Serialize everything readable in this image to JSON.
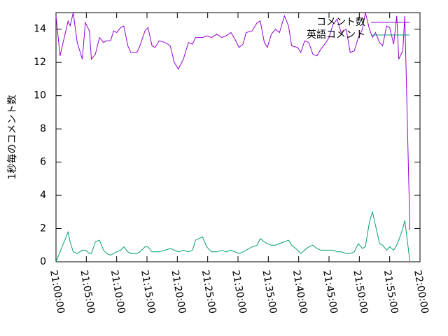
{
  "chart_data": {
    "type": "line",
    "ylabel": "1秒毎のコメント数",
    "legend": "top right",
    "x": [
      "21:00:00",
      "21:00:40",
      "21:02:00",
      "21:02:20",
      "21:02:50",
      "21:03:30",
      "21:04:20",
      "21:04:50",
      "21:05:30",
      "21:05:50",
      "21:06:30",
      "21:07:10",
      "21:07:50",
      "21:08:20",
      "21:09:00",
      "21:09:30",
      "21:10:00",
      "21:10:40",
      "21:11:10",
      "21:11:50",
      "21:12:20",
      "21:13:20",
      "21:13:50",
      "21:14:40",
      "21:15:10",
      "21:15:50",
      "21:16:20",
      "21:17:00",
      "21:18:00",
      "21:18:50",
      "21:19:30",
      "21:20:10",
      "21:21:00",
      "21:21:50",
      "21:22:30",
      "21:23:00",
      "21:24:10",
      "21:24:50",
      "21:25:40",
      "21:26:30",
      "21:27:20",
      "21:28:00",
      "21:28:50",
      "21:29:30",
      "21:30:10",
      "21:30:50",
      "21:31:20",
      "21:32:20",
      "21:33:10",
      "21:33:40",
      "21:34:20",
      "21:34:50",
      "21:35:30",
      "21:36:10",
      "21:36:50",
      "21:37:40",
      "21:38:20",
      "21:38:50",
      "21:39:50",
      "21:40:20",
      "21:41:00",
      "21:41:40",
      "21:42:20",
      "21:43:00",
      "21:43:40",
      "21:44:30",
      "21:45:00",
      "21:45:40",
      "21:46:20",
      "21:47:00",
      "21:47:50",
      "21:48:30",
      "21:49:10",
      "21:49:50",
      "21:50:30",
      "21:51:00",
      "21:51:40",
      "21:52:10",
      "21:52:40",
      "21:53:20",
      "21:53:50",
      "21:54:30",
      "21:55:00",
      "21:55:40",
      "21:56:10",
      "21:56:30",
      "21:57:10",
      "21:57:30",
      "21:58:20"
    ],
    "series": [
      {
        "name": "コメント数",
        "color": "#9400d3",
        "values": [
          14.8,
          12.4,
          14.5,
          14.2,
          15,
          13.2,
          12.2,
          14.4,
          13.9,
          12.2,
          12.5,
          13.5,
          13.2,
          13.3,
          13.3,
          13.9,
          13.8,
          14.1,
          14.2,
          13.0,
          12.6,
          12.6,
          13.0,
          13.9,
          14.1,
          13.0,
          12.9,
          13.3,
          13.2,
          13.0,
          12.0,
          11.6,
          12.2,
          13.2,
          13.1,
          13.5,
          13.5,
          13.6,
          13.5,
          13.7,
          13.5,
          13.6,
          13.8,
          13.4,
          12.9,
          13.1,
          13.8,
          13.9,
          14.4,
          14.5,
          13.2,
          12.9,
          13.7,
          14.0,
          13.8,
          14.8,
          14.2,
          13.0,
          12.9,
          12.6,
          13.3,
          13.2,
          12.5,
          12.4,
          12.8,
          13.2,
          13.5,
          14.3,
          14.6,
          13.8,
          14.0,
          12.6,
          12.7,
          13.5,
          14.0,
          15.0,
          14.0,
          13.5,
          13.8,
          13.2,
          13.0,
          14.2,
          14.1,
          13.1,
          14.8,
          12.2,
          12.7,
          14.8,
          1.9
        ]
      },
      {
        "name": "英語コメント",
        "color": "#009e73",
        "values": [
          0.0,
          0.6,
          1.8,
          1.2,
          0.6,
          0.5,
          0.7,
          0.7,
          0.5,
          0.5,
          1.2,
          1.3,
          0.7,
          0.5,
          0.4,
          0.5,
          0.6,
          0.7,
          0.9,
          0.6,
          0.5,
          0.5,
          0.6,
          0.9,
          0.9,
          0.6,
          0.6,
          0.6,
          0.7,
          0.8,
          0.7,
          0.6,
          0.7,
          0.6,
          0.7,
          1.3,
          1.5,
          0.9,
          0.6,
          0.6,
          0.7,
          0.6,
          0.7,
          0.6,
          0.5,
          0.6,
          0.7,
          0.9,
          1.0,
          1.4,
          1.2,
          1.1,
          1.0,
          1.0,
          1.1,
          1.2,
          1.3,
          1.0,
          0.7,
          0.5,
          0.7,
          0.9,
          1.0,
          0.8,
          0.7,
          0.7,
          0.7,
          0.7,
          0.6,
          0.6,
          0.5,
          0.5,
          0.6,
          1.1,
          0.8,
          0.9,
          2.4,
          3.0,
          2.2,
          1.1,
          1.0,
          0.7,
          0.9,
          0.7,
          1.0,
          1.3,
          2.0,
          2.5,
          0.0
        ]
      }
    ],
    "xlim": [
      "21:00:00",
      "22:00:00"
    ],
    "xticks": [
      "21:00:00",
      "21:05:00",
      "21:10:00",
      "21:15:00",
      "21:20:00",
      "21:25:00",
      "21:30:00",
      "21:35:00",
      "21:40:00",
      "21:45:00",
      "21:50:00",
      "21:55:00",
      "22:00:00"
    ],
    "ylim": [
      0,
      15
    ],
    "yticks": [
      0,
      2,
      4,
      6,
      8,
      10,
      12,
      14
    ]
  }
}
